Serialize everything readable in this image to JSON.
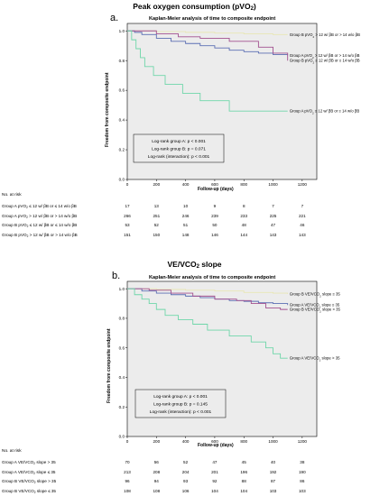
{
  "charts": [
    {
      "section_title": "Peak oxygen consumption (pVO2)",
      "panel_letter": "a.",
      "chart_data": {
        "type": "line",
        "title": "Kaplan-Meier analysis of time to composite endpoint",
        "xlabel": "Follow-up (days)",
        "ylabel": "Freedom from composite endpoint",
        "xlim": [
          0,
          1300
        ],
        "ylim": [
          0.0,
          1.05
        ],
        "xticks": [
          0,
          200,
          400,
          600,
          800,
          1000,
          1200
        ],
        "yticks": [
          0.0,
          0.2,
          0.4,
          0.6,
          0.8,
          1.0
        ],
        "background": "#ececec",
        "series": [
          {
            "name": "Group B pVO2 > 12 w/ βB or > 14 w/o βB",
            "color": "#e8e6b4",
            "points": [
              [
                0,
                1.0
              ],
              [
                100,
                1.0
              ],
              [
                200,
                0.995
              ],
              [
                400,
                0.99
              ],
              [
                600,
                0.985
              ],
              [
                800,
                0.98
              ],
              [
                1000,
                0.975
              ],
              [
                1100,
                0.975
              ]
            ]
          },
          {
            "name": "Group A pVO2 > 12 w/ βB or > 14 w/o βB",
            "color": "#5b6eb3",
            "points": [
              [
                0,
                1.0
              ],
              [
                50,
                0.99
              ],
              [
                100,
                0.975
              ],
              [
                200,
                0.95
              ],
              [
                300,
                0.93
              ],
              [
                400,
                0.915
              ],
              [
                500,
                0.9
              ],
              [
                600,
                0.885
              ],
              [
                700,
                0.87
              ],
              [
                800,
                0.86
              ],
              [
                900,
                0.85
              ],
              [
                1000,
                0.84
              ],
              [
                1100,
                0.835
              ]
            ]
          },
          {
            "name": "Group B pVO2 ≤ 12 w/ βB or ≤ 14 w/o βB",
            "color": "#a2508f",
            "points": [
              [
                0,
                1.0
              ],
              [
                150,
                1.0
              ],
              [
                200,
                0.98
              ],
              [
                350,
                0.96
              ],
              [
                500,
                0.95
              ],
              [
                700,
                0.93
              ],
              [
                900,
                0.89
              ],
              [
                1000,
                0.85
              ],
              [
                1100,
                0.8
              ]
            ]
          },
          {
            "name": "Group A pVO2 ≤ 12 w/ βB or ≤ 14 w/o βB",
            "color": "#6fd6a9",
            "points": [
              [
                0,
                1.0
              ],
              [
                30,
                0.94
              ],
              [
                60,
                0.88
              ],
              [
                90,
                0.82
              ],
              [
                120,
                0.76
              ],
              [
                180,
                0.7
              ],
              [
                260,
                0.64
              ],
              [
                380,
                0.58
              ],
              [
                500,
                0.53
              ],
              [
                700,
                0.46
              ],
              [
                1100,
                0.46
              ]
            ]
          }
        ],
        "logrank": [
          "Log-rank group A: p < 0.001",
          "Log-rank group B: p = 0.071",
          "Log-rank (interaction): p < 0.001"
        ]
      },
      "risk_table": {
        "header": "No. at risk",
        "rows": [
          {
            "label": "Group A pVO2 ≤ 12 w/ βB or ≤ 14 w/o βB",
            "values": [
              "17",
              "13",
              "10",
              "9",
              "8",
              "7",
              "7"
            ]
          },
          {
            "label": "Group A pVO2 > 12 w/ βB or > 14 w/o βB",
            "values": [
              "266",
              "251",
              "246",
              "239",
              "233",
              "225",
              "221"
            ]
          },
          {
            "label": "Group B pVO2 ≤ 12 w/ βB or ≤ 14 w/o βB",
            "values": [
              "53",
              "52",
              "51",
              "50",
              "48",
              "47",
              "46"
            ]
          },
          {
            "label": "Group B pVO2 > 12 w/ βB or > 14 w/o βB",
            "values": [
              "151",
              "150",
              "148",
              "146",
              "144",
              "143",
              "143"
            ]
          }
        ]
      }
    },
    {
      "section_title": "VE/VCO2 slope",
      "panel_letter": "b.",
      "chart_data": {
        "type": "line",
        "title": "Kaplan-Meier analysis of time to composite endpoint",
        "xlabel": "Follow-up (days)",
        "ylabel": "Freedom from composite endpoint",
        "xlim": [
          0,
          1300
        ],
        "ylim": [
          0.0,
          1.05
        ],
        "xticks": [
          0,
          200,
          400,
          600,
          800,
          1000,
          1200
        ],
        "yticks": [
          0.0,
          0.2,
          0.4,
          0.6,
          0.8,
          1.0
        ],
        "background": "#ececec",
        "series": [
          {
            "name": "Group B VE/VCO2 slope ≤ 35",
            "color": "#e8e6b4",
            "points": [
              [
                0,
                1.0
              ],
              [
                200,
                0.995
              ],
              [
                400,
                0.99
              ],
              [
                600,
                0.985
              ],
              [
                800,
                0.975
              ],
              [
                1000,
                0.97
              ],
              [
                1100,
                0.965
              ]
            ]
          },
          {
            "name": "Group A VE/VCO2 slope ≤ 35",
            "color": "#5b6eb3",
            "points": [
              [
                0,
                1.0
              ],
              [
                100,
                0.985
              ],
              [
                200,
                0.97
              ],
              [
                300,
                0.96
              ],
              [
                400,
                0.95
              ],
              [
                500,
                0.94
              ],
              [
                600,
                0.93
              ],
              [
                700,
                0.92
              ],
              [
                800,
                0.915
              ],
              [
                900,
                0.905
              ],
              [
                1000,
                0.9
              ],
              [
                1100,
                0.89
              ]
            ]
          },
          {
            "name": "Group B VE/VCO2 slope > 35",
            "color": "#a2508f",
            "points": [
              [
                0,
                1.0
              ],
              [
                150,
                0.99
              ],
              [
                300,
                0.97
              ],
              [
                450,
                0.95
              ],
              [
                600,
                0.93
              ],
              [
                750,
                0.92
              ],
              [
                850,
                0.9
              ],
              [
                950,
                0.87
              ],
              [
                1050,
                0.86
              ],
              [
                1100,
                0.86
              ]
            ]
          },
          {
            "name": "Group A VE/VCO2 slope > 35",
            "color": "#6fd6a9",
            "points": [
              [
                0,
                1.0
              ],
              [
                50,
                0.96
              ],
              [
                100,
                0.93
              ],
              [
                150,
                0.9
              ],
              [
                200,
                0.86
              ],
              [
                260,
                0.82
              ],
              [
                350,
                0.79
              ],
              [
                450,
                0.76
              ],
              [
                550,
                0.72
              ],
              [
                700,
                0.68
              ],
              [
                850,
                0.64
              ],
              [
                950,
                0.6
              ],
              [
                1000,
                0.56
              ],
              [
                1050,
                0.53
              ],
              [
                1100,
                0.53
              ]
            ]
          }
        ],
        "logrank": [
          "Log-rank group A: p < 0.001",
          "Log-rank group B: p = 0.145",
          "Log-rank (interaction): p < 0.001"
        ]
      },
      "risk_table": {
        "header": "No. at risk",
        "rows": [
          {
            "label": "Group A VE/VCO2 slope > 35",
            "values": [
              "70",
              "56",
              "52",
              "47",
              "45",
              "40",
              "38"
            ]
          },
          {
            "label": "Group A VE/VCO2 slope ≤ 35",
            "values": [
              "213",
              "208",
              "204",
              "201",
              "196",
              "192",
              "190"
            ]
          },
          {
            "label": "Group B VE/VCO2 slope > 35",
            "values": [
              "96",
              "94",
              "93",
              "92",
              "88",
              "87",
              "86"
            ]
          },
          {
            "label": "Group B VE/VCO2 slope ≤ 35",
            "values": [
              "108",
              "108",
              "106",
              "104",
              "104",
              "103",
              "103"
            ]
          }
        ]
      }
    }
  ]
}
